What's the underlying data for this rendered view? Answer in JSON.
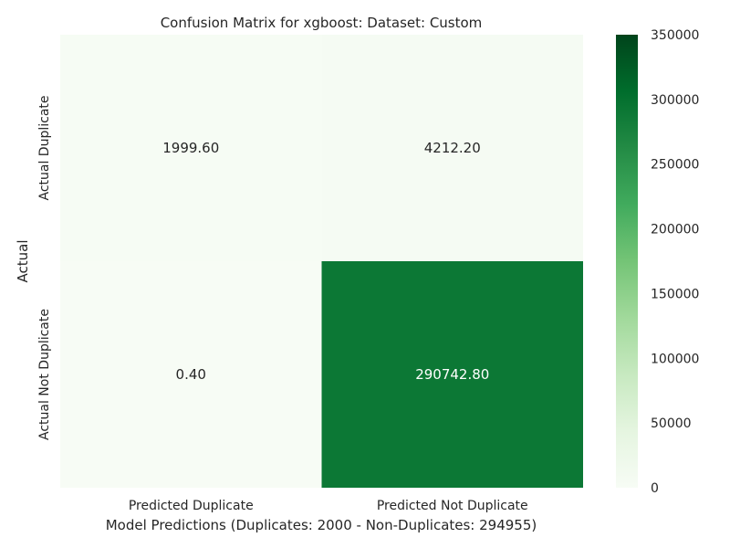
{
  "chart_data": {
    "type": "heatmap",
    "title": "Confusion Matrix for xgboost: Dataset: Custom",
    "xlabel": "Model Predictions (Duplicates: 2000 - Non-Duplicates: 294955)",
    "ylabel": "Actual",
    "x_categories": [
      "Predicted Duplicate",
      "Predicted Not Duplicate"
    ],
    "y_categories": [
      "Actual Duplicate",
      "Actual Not Duplicate"
    ],
    "values": [
      [
        1999.6,
        4212.2
      ],
      [
        0.4,
        290742.8
      ]
    ],
    "value_labels": [
      [
        "1999.60",
        "4212.20"
      ],
      [
        "0.40",
        "290742.80"
      ]
    ],
    "colorbar": {
      "min": 0,
      "max": 350000,
      "ticks": [
        0,
        50000,
        100000,
        150000,
        200000,
        250000,
        300000,
        350000
      ],
      "colormap": "Greens",
      "colors": [
        "#f7fcf5",
        "#e5f5e0",
        "#c7e9c0",
        "#a1d99b",
        "#74c476",
        "#41ab5d",
        "#238b45",
        "#006d2c",
        "#00441b"
      ]
    },
    "grid": false
  }
}
